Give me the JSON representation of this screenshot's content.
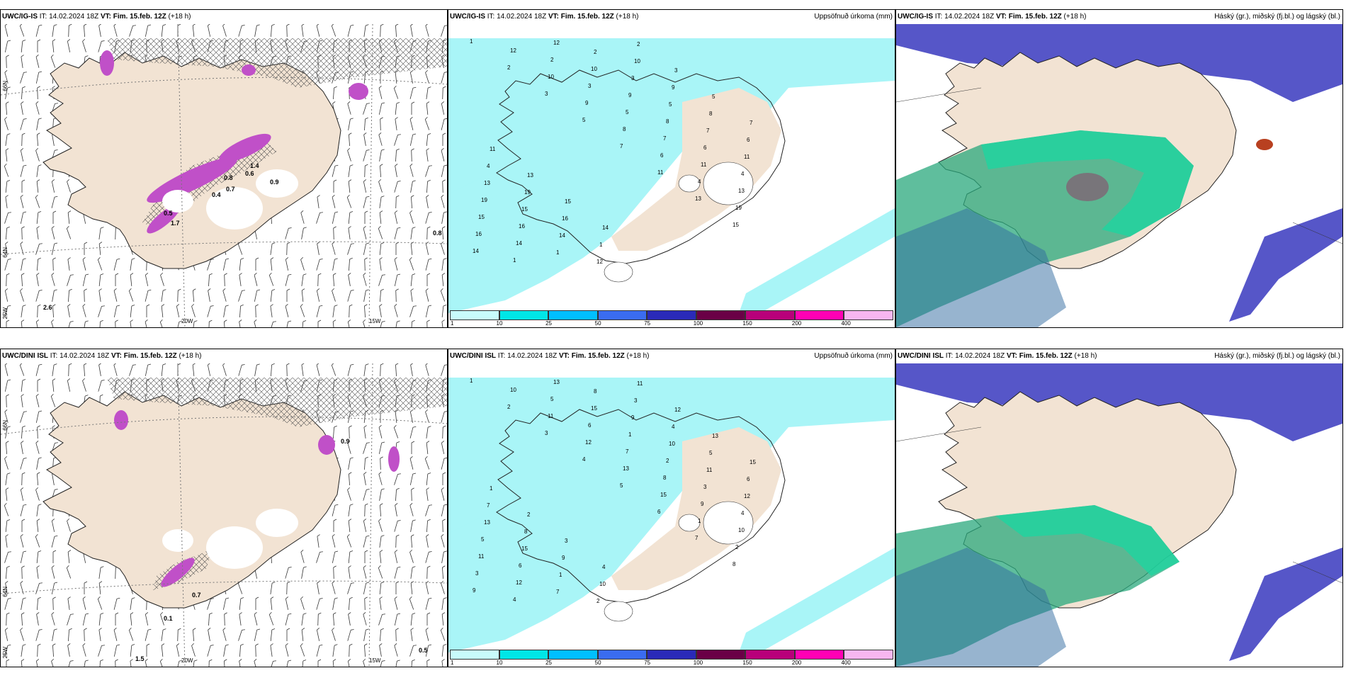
{
  "panels": [
    {
      "model": "UWC/IG-IS",
      "it": "IT: 14.02.2024 18Z",
      "vt": "VT: Fim. 15.feb. 12Z",
      "lead": "(+18 h)",
      "right": ""
    },
    {
      "model": "UWC/IG-IS",
      "it": "IT: 14.02.2024 18Z",
      "vt": "VT: Fim. 15.feb. 12Z",
      "lead": "(+18 h)",
      "right": "Uppsöfnuð úrkoma (mm)"
    },
    {
      "model": "UWC/IG-IS",
      "it": "IT: 14.02.2024 18Z",
      "vt": "VT: Fim. 15.feb. 12Z",
      "lead": "(+18 h)",
      "right": "Háský (gr.), miðský (fj.bl.) og lágský (bl.)"
    },
    {
      "model": "UWC/DINI ISL",
      "it": "IT: 14.02.2024 18Z",
      "vt": "VT: Fim. 15.feb. 12Z",
      "lead": "(+18 h)",
      "right": ""
    },
    {
      "model": "UWC/DINI ISL",
      "it": "IT: 14.02.2024 18Z",
      "vt": "VT: Fim. 15.feb. 12Z",
      "lead": "(+18 h)",
      "right": "Uppsöfnuð úrkoma (mm)"
    },
    {
      "model": "UWC/DINI ISL",
      "it": "IT: 14.02.2024 18Z",
      "vt": "VT: Fim. 15.feb. 12Z",
      "lead": "(+18 h)",
      "right": "Háský (gr.), miðský (fj.bl.) og lágský (bl.)"
    }
  ],
  "axis_labels": {
    "lon_20w": "20W",
    "lon_15w": "15W",
    "lat_66n": "66N",
    "lat_64n": "64N",
    "lon_25w": "25W"
  },
  "colorbar": {
    "ticks": [
      "1",
      "10",
      "25",
      "50",
      "75",
      "100",
      "150",
      "200",
      "400"
    ],
    "colors": [
      "#c8fbfb",
      "#00e6e6",
      "#00bfff",
      "#3a6cf0",
      "#2a2ab8",
      "#6a0046",
      "#b8007a",
      "#ff00b4",
      "#f7b6f0"
    ]
  },
  "precip_labels_top": [
    "1",
    "2",
    "3",
    "5",
    "7",
    "11",
    "13",
    "15",
    "14",
    "12",
    "10",
    "9",
    "8",
    "6",
    "4",
    "19",
    "16"
  ],
  "precip_labels_bottom": [
    "1",
    "2",
    "3",
    "4",
    "5",
    "6",
    "7",
    "8",
    "9",
    "10",
    "11",
    "12",
    "13",
    "15"
  ],
  "snow_labels_top": [
    "0.8",
    "0.4",
    "0.7",
    "0.9",
    "1.4",
    "0.6",
    "0.5",
    "1.7",
    "2.6",
    "0.8"
  ],
  "snow_labels_bottom": [
    "0.9",
    "1.5",
    "0.5",
    "0.7",
    "0.1"
  ],
  "colors": {
    "land": "#f2e3d3",
    "precip_light": "#a9f5f7",
    "snow": "#c050c8",
    "cloud_high": "#5656c8",
    "cloud_mid": "#2aa87c",
    "cloud_low": "#1ed4a0"
  }
}
